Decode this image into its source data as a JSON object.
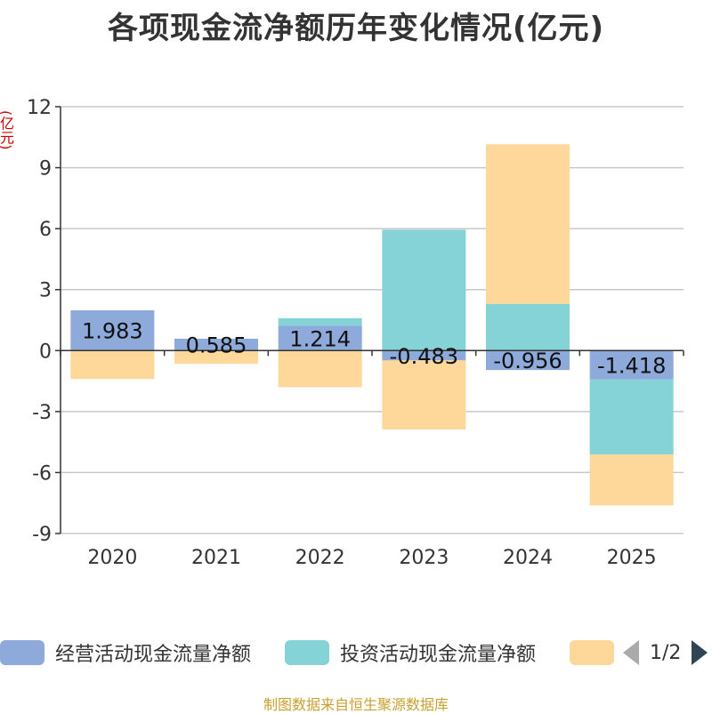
{
  "title": "各项现金流净额历年变化情况(亿元)",
  "unit_label": "(亿元)",
  "source": "制图数据来自恒生聚源数据库",
  "legend": {
    "items": [
      {
        "label": "经营活动现金流量净额",
        "color": "#8eaadb"
      },
      {
        "label": "投资活动现金流量净额",
        "color": "#85d3d6"
      },
      {
        "label": "",
        "color": "#fdd89a"
      }
    ],
    "page": "1/2"
  },
  "chart_data": {
    "type": "bar",
    "stacked": true,
    "categories": [
      "2020",
      "2021",
      "2022",
      "2023",
      "2024",
      "2025"
    ],
    "series": [
      {
        "name": "经营活动现金流量净额",
        "color": "#8eaadb",
        "values": [
          1.983,
          0.585,
          1.214,
          -0.483,
          -0.956,
          -1.418
        ]
      },
      {
        "name": "投资活动现金流量净额",
        "color": "#85d3d6",
        "values": [
          0,
          0,
          0.38,
          5.95,
          2.3,
          -3.7
        ]
      },
      {
        "name": "",
        "color": "#fdd89a",
        "values": [
          -1.4,
          -0.65,
          -1.8,
          -3.4,
          7.85,
          -2.5
        ]
      }
    ],
    "data_labels": [
      "1.983",
      "0.585",
      "1.214",
      "-0.483",
      "-0.956",
      "-1.418"
    ],
    "ylim": [
      -9,
      12
    ],
    "yticks": [
      12,
      9,
      6,
      3,
      0,
      -3,
      -6,
      -9
    ],
    "ylabel": "(亿元)",
    "xlabel": ""
  }
}
